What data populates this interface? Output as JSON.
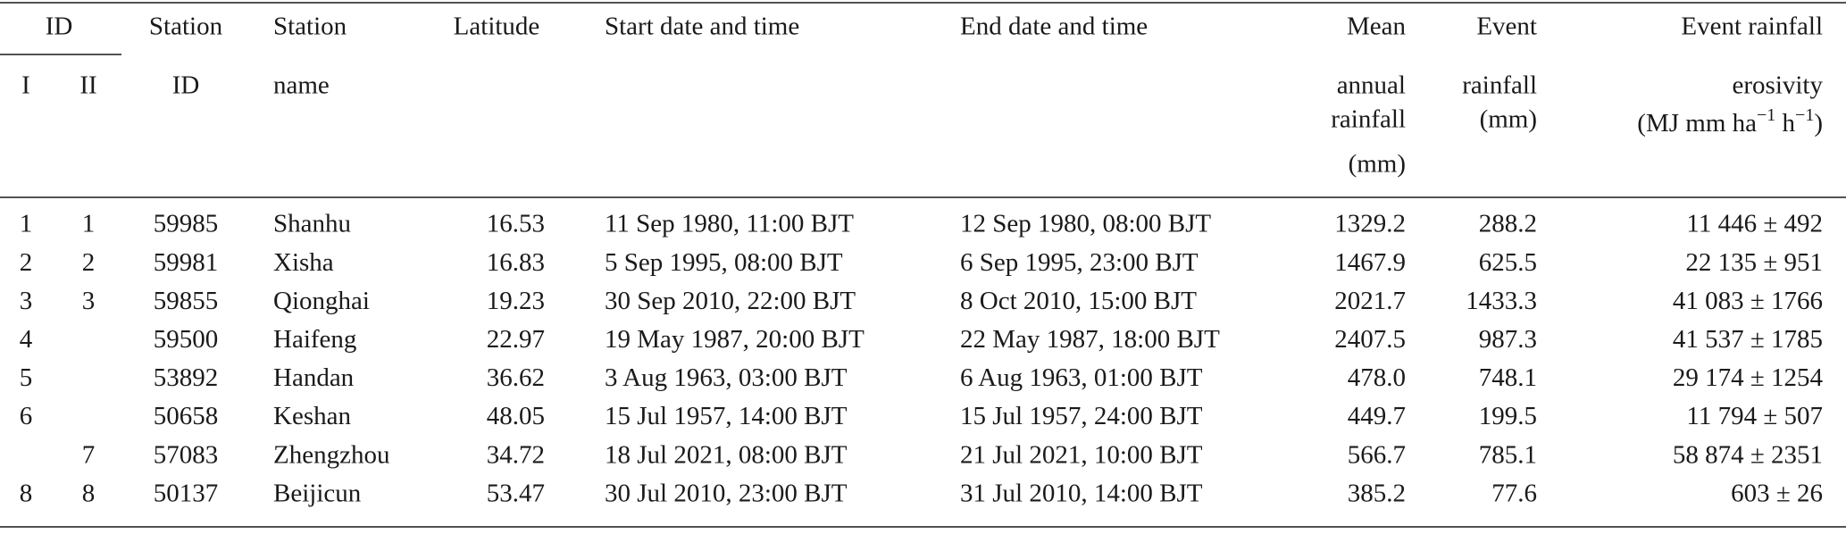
{
  "header": {
    "id": "ID",
    "id_sub": [
      "I",
      "II"
    ],
    "station_id": [
      "Station",
      "ID"
    ],
    "station_name": [
      "Station",
      "name"
    ],
    "latitude": "Latitude",
    "start": "Start date and time",
    "end": "End date and time",
    "mean": [
      "Mean",
      "annual",
      "rainfall",
      "(mm)"
    ],
    "event": [
      "Event",
      "rainfall",
      "(mm)"
    ],
    "erosivity": {
      "lines": [
        "Event rainfall",
        "erosivity"
      ],
      "unit": [
        "(MJ mm ha",
        "−1",
        " h",
        "−1",
        ")"
      ]
    }
  },
  "table": {
    "rows": [
      [
        "1",
        "1",
        "59985",
        "Shanhu",
        "16.53",
        "11 Sep 1980, 11:00 BJT",
        "12 Sep 1980, 08:00 BJT",
        "1329.2",
        "288.2",
        "11 446 ± 492"
      ],
      [
        "2",
        "2",
        "59981",
        "Xisha",
        "16.83",
        "5 Sep 1995, 08:00 BJT",
        "6 Sep 1995, 23:00 BJT",
        "1467.9",
        "625.5",
        "22 135 ± 951"
      ],
      [
        "3",
        "3",
        "59855",
        "Qionghai",
        "19.23",
        "30 Sep 2010, 22:00 BJT",
        "8 Oct 2010, 15:00 BJT",
        "2021.7",
        "1433.3",
        "41 083 ± 1766"
      ],
      [
        "4",
        null,
        "59500",
        "Haifeng",
        "22.97",
        "19 May 1987, 20:00 BJT",
        "22 May 1987, 18:00 BJT",
        "2407.5",
        "987.3",
        "41 537 ± 1785"
      ],
      [
        "5",
        null,
        "53892",
        "Handan",
        "36.62",
        "3 Aug 1963, 03:00 BJT",
        "6 Aug 1963, 01:00 BJT",
        "478.0",
        "748.1",
        "29 174 ± 1254"
      ],
      [
        "6",
        null,
        "50658",
        "Keshan",
        "48.05",
        "15 Jul 1957, 14:00 BJT",
        "15 Jul 1957, 24:00 BJT",
        "449.7",
        "199.5",
        "11 794 ± 507"
      ],
      [
        null,
        "7",
        "57083",
        "Zhengzhou",
        "34.72",
        "18 Jul 2021, 08:00 BJT",
        "21 Jul 2021, 10:00 BJT",
        "566.7",
        "785.1",
        "58 874 ± 2351"
      ],
      [
        "8",
        "8",
        "50137",
        "Beijicun",
        "53.47",
        "30 Jul 2010, 23:00 BJT",
        "31 Jul 2010, 14:00 BJT",
        "385.2",
        "77.6",
        "603 ± 26"
      ]
    ]
  }
}
